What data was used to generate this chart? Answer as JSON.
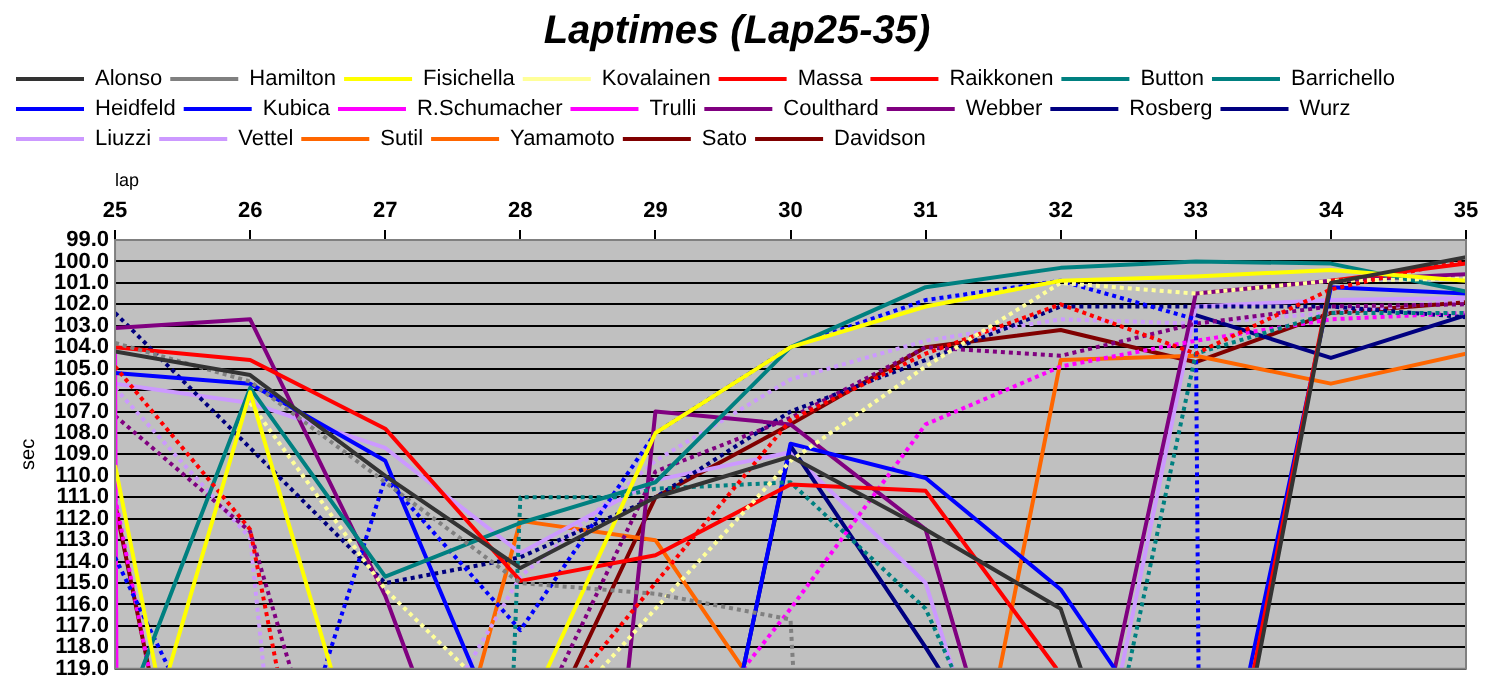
{
  "chart_data": {
    "type": "line",
    "title": "Laptimes (Lap25-35)",
    "xlabel": "lap",
    "ylabel": "sec",
    "xlim": [
      25,
      35
    ],
    "xticks": [
      25,
      26,
      27,
      28,
      29,
      30,
      31,
      32,
      33,
      34,
      35
    ],
    "ylim": [
      119,
      99
    ],
    "yticks": [
      {
        "value": 99,
        "label": "99.0"
      },
      {
        "value": 100,
        "label": "100.0"
      },
      {
        "value": 101,
        "label": "101.0"
      },
      {
        "value": 102,
        "label": "102.0"
      },
      {
        "value": 103,
        "label": "103.0"
      },
      {
        "value": 104,
        "label": "104.0"
      },
      {
        "value": 105,
        "label": "105.0"
      },
      {
        "value": 106,
        "label": "106.0"
      },
      {
        "value": 107,
        "label": "107.0"
      },
      {
        "value": 108,
        "label": "108.0"
      },
      {
        "value": 109,
        "label": "109.0"
      },
      {
        "value": 110,
        "label": "110.0"
      },
      {
        "value": 111,
        "label": "111.0"
      },
      {
        "value": 112,
        "label": "112.0"
      },
      {
        "value": 113,
        "label": "113.0"
      },
      {
        "value": 114,
        "label": "114.0"
      },
      {
        "value": 115,
        "label": "115.0"
      },
      {
        "value": 116,
        "label": "116.0"
      },
      {
        "value": 117,
        "label": "117.0"
      },
      {
        "value": 118,
        "label": "118.0"
      },
      {
        "value": 119,
        "label": "119.0"
      }
    ],
    "grid": "y",
    "legend": "top",
    "series": [
      {
        "name": "Alonso",
        "color": "#333333",
        "line_style": "solid",
        "x": [
          25,
          26,
          27,
          28,
          29,
          30,
          31,
          32,
          32.15,
          32.6,
          33.45,
          34,
          35
        ],
        "values": [
          104.2,
          105.3,
          110.0,
          114.3,
          111.0,
          109.1,
          112.5,
          116.2,
          119,
          null,
          119,
          101.0,
          99.8
        ]
      },
      {
        "name": "Hamilton",
        "color": "#808080",
        "line_style": "dotted",
        "x": [
          25,
          26,
          27,
          28,
          29,
          30,
          30.02
        ],
        "values": [
          103.8,
          105.6,
          110.3,
          115.0,
          115.5,
          116.7,
          119
        ]
      },
      {
        "name": "Fisichella",
        "color": "#ffff00",
        "line_style": "solid",
        "x": [
          25,
          25.3,
          25.35,
          25.4,
          26,
          26.6,
          27.5,
          28.2,
          29,
          30,
          31,
          32,
          33,
          34,
          35
        ],
        "values": [
          109.5,
          119,
          null,
          119,
          106.1,
          119,
          null,
          119,
          108.0,
          104.0,
          102.1,
          100.9,
          100.7,
          100.4,
          100.9
        ]
      },
      {
        "name": "Kovalainen",
        "color": "#ffff99",
        "line_style": "dotted",
        "x": [
          26,
          27,
          27.6,
          28.1,
          28.6,
          29,
          30,
          31,
          32,
          33,
          34,
          35
        ],
        "values": [
          106.6,
          115.3,
          119,
          null,
          119,
          116.2,
          109.3,
          104.9,
          101.0,
          101.5,
          100.9,
          100.8
        ]
      },
      {
        "name": "Massa",
        "color": "#ff0000",
        "line_style": "dotted",
        "x": [
          25,
          26,
          26.2,
          27.3,
          28.48,
          29,
          30,
          31,
          32,
          33,
          34,
          35
        ],
        "values": [
          104.9,
          112.5,
          119,
          null,
          119,
          115.0,
          107.4,
          104.3,
          102.0,
          104.3,
          101.3,
          99.9
        ]
      },
      {
        "name": "Raikkonen",
        "color": "#ff0000",
        "line_style": "solid",
        "x": [
          25,
          26,
          27,
          28,
          29,
          30,
          31,
          31.97,
          32.7,
          33.43,
          34,
          35
        ],
        "values": [
          104.0,
          104.6,
          107.8,
          114.9,
          113.7,
          110.4,
          110.7,
          119,
          null,
          119,
          100.9,
          100.1
        ]
      },
      {
        "name": "Button",
        "color": "#008080",
        "line_style": "solid",
        "x": [
          25.2,
          26,
          27,
          28,
          29,
          30,
          31,
          32,
          33,
          34,
          35
        ],
        "values": [
          119,
          105.9,
          114.7,
          112.2,
          110.3,
          104.0,
          101.2,
          100.3,
          100.0,
          100.1,
          101.4
        ]
      },
      {
        "name": "Barrichello",
        "color": "#008080",
        "line_style": "dotted",
        "x": [
          27.95,
          28,
          28.7,
          29,
          30,
          31,
          31.2,
          31.9,
          32.5,
          33,
          34,
          35
        ],
        "values": [
          119,
          111.0,
          111.0,
          110.6,
          110.3,
          116.2,
          119,
          null,
          119,
          104.3,
          102.4,
          102.4
        ]
      },
      {
        "name": "Heidfeld",
        "color": "#0000ff",
        "line_style": "solid",
        "x": [
          25,
          26,
          27,
          27.65,
          28.6,
          29.65,
          30,
          31,
          32,
          32.4,
          32.9,
          33.4,
          34,
          35
        ],
        "values": [
          105.2,
          105.7,
          109.3,
          119,
          null,
          119,
          108.5,
          110.1,
          115.3,
          119,
          null,
          119,
          101.2,
          101.5
        ]
      },
      {
        "name": "Kubica",
        "color": "#0000ff",
        "line_style": "dotted",
        "x": [
          25,
          25.4,
          26,
          26.55,
          27,
          28,
          29,
          30,
          31,
          32,
          33,
          33.02
        ],
        "values": [
          113.8,
          119,
          null,
          119,
          110.1,
          117.2,
          108.0,
          104.0,
          101.8,
          100.9,
          102.7,
          119
        ]
      },
      {
        "name": "R.Schumacher",
        "color": "#ff00ff",
        "line_style": "solid",
        "x": [
          25,
          25.01
        ],
        "values": [
          104.1,
          119
        ]
      },
      {
        "name": "Trulli",
        "color": "#ff00ff",
        "line_style": "dotted",
        "x": [
          25,
          25.25,
          27,
          29.65,
          30,
          31,
          32,
          33,
          34,
          35
        ],
        "values": [
          111.0,
          119,
          null,
          119,
          116.2,
          107.6,
          104.9,
          103.7,
          102.7,
          102.4
        ]
      },
      {
        "name": "Coulthard",
        "color": "#800080",
        "line_style": "dotted",
        "x": [
          25,
          26,
          26.3,
          27.5,
          28.3,
          29,
          30,
          31,
          32,
          33,
          34,
          35
        ],
        "values": [
          107.2,
          112.6,
          119,
          null,
          119,
          109.8,
          107.3,
          104.0,
          104.4,
          102.9,
          102.1,
          102.0
        ]
      },
      {
        "name": "Webber",
        "color": "#800080",
        "line_style": "solid",
        "x": [
          25,
          26,
          27,
          27.2,
          28,
          28.8,
          29,
          30,
          31,
          31.3,
          32,
          32.4,
          33,
          34,
          35
        ],
        "values": [
          103.1,
          102.7,
          115.6,
          119,
          null,
          119,
          107.0,
          107.6,
          112.5,
          119,
          null,
          119,
          101.5,
          100.9,
          100.6
        ]
      },
      {
        "name": "Rosberg",
        "color": "#000080",
        "line_style": "solid",
        "x": [
          29.65,
          30,
          31,
          31.1,
          32,
          33,
          34,
          35
        ],
        "values": [
          119,
          108.6,
          118.0,
          119,
          null,
          102.5,
          104.5,
          102.5
        ]
      },
      {
        "name": "Wurz",
        "color": "#000080",
        "line_style": "dotted",
        "x": [
          25,
          26,
          27,
          28,
          29,
          30,
          31,
          32,
          33,
          34,
          35
        ],
        "values": [
          102.4,
          108.7,
          115.0,
          113.8,
          111.0,
          107.0,
          104.6,
          102.1,
          102.1,
          102.1,
          102.6
        ]
      },
      {
        "name": "Liuzzi",
        "color": "#cc99ff",
        "line_style": "solid",
        "x": [
          25,
          26,
          27,
          28,
          29,
          30,
          31,
          31.2,
          32,
          32.45,
          33,
          34,
          35
        ],
        "values": [
          105.7,
          106.6,
          108.7,
          113.6,
          110.2,
          108.9,
          115.0,
          119,
          null,
          119,
          102.1,
          101.8,
          101.7
        ]
      },
      {
        "name": "Vettel",
        "color": "#cc99ff",
        "line_style": "dotted",
        "x": [
          25,
          26,
          26.1,
          27,
          27.6,
          28,
          29,
          30,
          31,
          32,
          33,
          34,
          35
        ],
        "values": [
          105.9,
          112.9,
          119,
          null,
          119,
          114.7,
          109.3,
          105.5,
          103.7,
          102.7,
          102.9,
          102.4,
          101.8
        ]
      },
      {
        "name": "Sutil",
        "color": "#ff6600",
        "line_style": "dotted"
      },
      {
        "name": "Yamamoto",
        "color": "#ff6600",
        "line_style": "solid",
        "x": [
          27.7,
          28,
          29,
          29.65,
          30.5,
          31.55,
          32,
          33,
          34,
          35
        ],
        "values": [
          119,
          112.1,
          113.0,
          119,
          null,
          119,
          104.6,
          104.4,
          105.7,
          104.3
        ]
      },
      {
        "name": "Sato",
        "color": "#800000",
        "line_style": "solid",
        "x": [
          25,
          25.25,
          27,
          28.4,
          29,
          30,
          31,
          32,
          33,
          34,
          35
        ],
        "values": [
          111.3,
          119,
          null,
          119,
          111.0,
          107.6,
          104.0,
          103.2,
          104.7,
          102.4,
          101.9
        ]
      },
      {
        "name": "Davidson",
        "color": "#800000",
        "line_style": "dotted"
      }
    ]
  }
}
